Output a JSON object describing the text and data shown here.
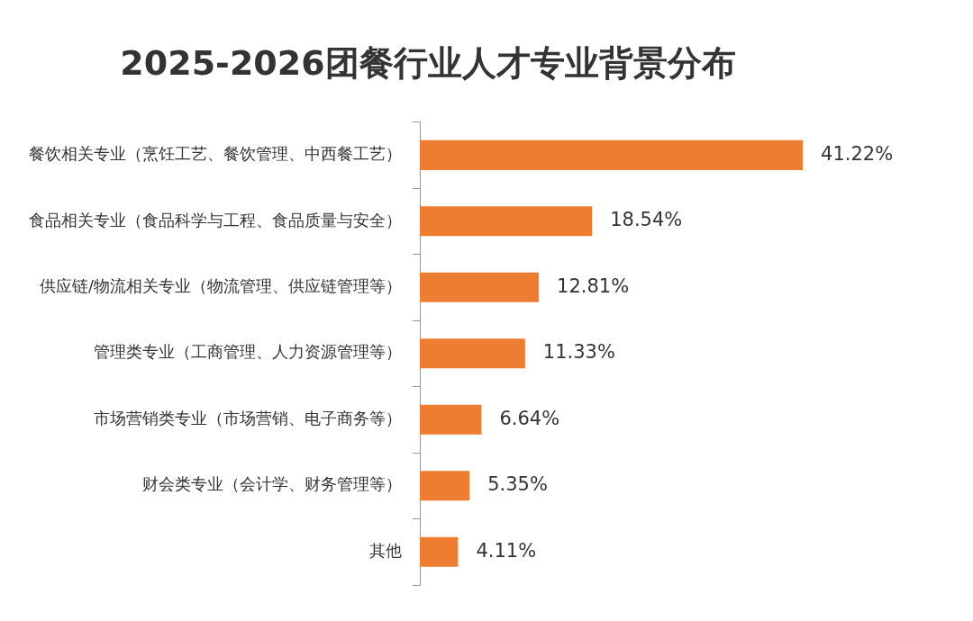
{
  "chart_data": {
    "type": "bar",
    "orientation": "horizontal",
    "title": "2025-2026团餐行业人才专业背景分布",
    "categories": [
      "餐饮相关专业（烹饪工艺、餐饮管理、中西餐工艺）",
      "食品相关专业（食品科学与工程、食品质量与安全）",
      "供应链/物流相关专业（物流管理、供应链管理等）",
      "管理类专业（工商管理、人力资源管理等）",
      "市场营销类专业（市场营销、电子商务等）",
      "财会类专业（会计学、财务管理等）",
      "其他"
    ],
    "values": [
      41.22,
      18.54,
      12.81,
      11.33,
      6.64,
      5.35,
      4.11
    ],
    "value_labels": [
      "41.22%",
      "18.54%",
      "12.81%",
      "11.33%",
      "6.64%",
      "5.35%",
      "4.11%"
    ],
    "color": "#ed7d31"
  }
}
